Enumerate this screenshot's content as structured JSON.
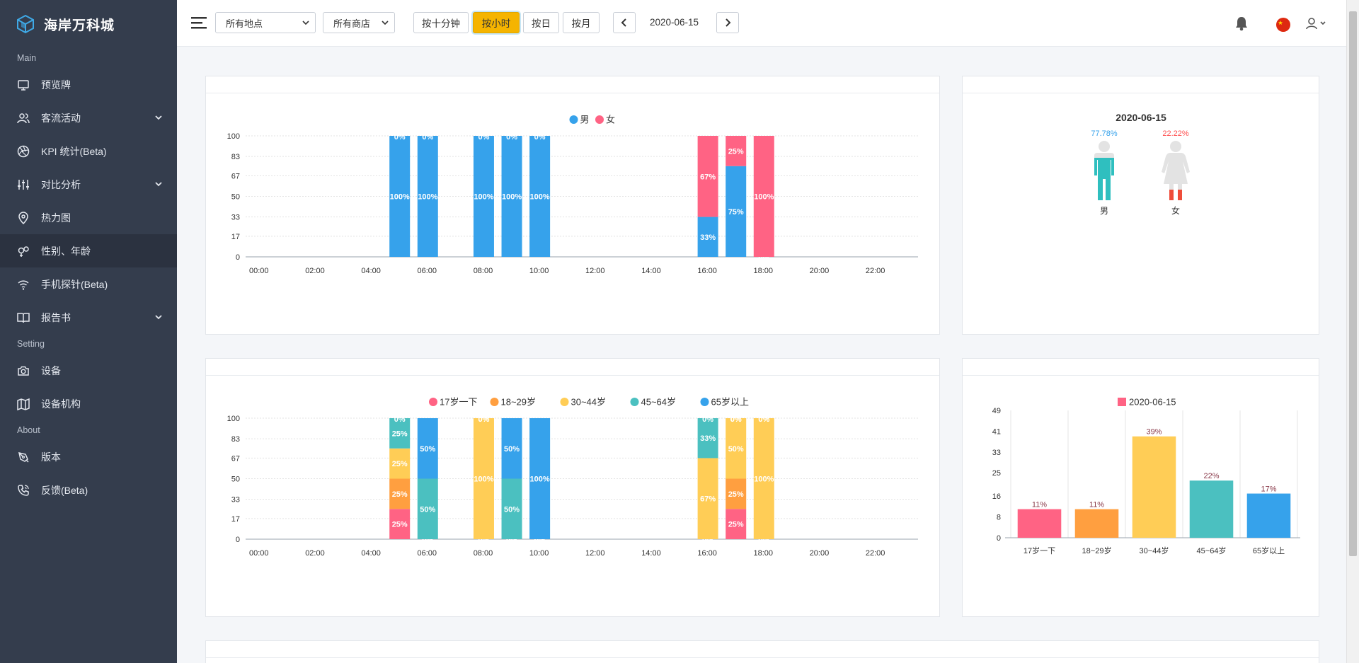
{
  "app": {
    "brand": "海岸万科城"
  },
  "sidebar": {
    "sections": {
      "main": "Main",
      "setting": "Setting",
      "about": "About"
    },
    "items": [
      {
        "label": "预览牌",
        "icon": "monitor-icon"
      },
      {
        "label": "客流活动",
        "icon": "users-icon",
        "expandable": true
      },
      {
        "label": "KPI 统计(Beta)",
        "icon": "aperture-icon"
      },
      {
        "label": "对比分析",
        "icon": "sliders-icon",
        "expandable": true
      },
      {
        "label": "热力图",
        "icon": "map-pin-icon"
      },
      {
        "label": "性别、年龄",
        "icon": "gender-icon",
        "active": true
      },
      {
        "label": "手机探针(Beta)",
        "icon": "wifi-icon"
      },
      {
        "label": "报告书",
        "icon": "book-icon",
        "expandable": true
      },
      {
        "label": "设备",
        "icon": "camera-icon"
      },
      {
        "label": "设备机构",
        "icon": "map-icon"
      },
      {
        "label": "版本",
        "icon": "pen-tool-icon"
      },
      {
        "label": "反馈(Beta)",
        "icon": "phone-icon"
      }
    ]
  },
  "toolbar": {
    "location_select": "所有地点",
    "store_select": "所有商店",
    "granularity": [
      "按十分钟",
      "按小时",
      "按日",
      "按月"
    ],
    "granularity_active": "按小时",
    "date": "2020-06-15"
  },
  "colors": {
    "male": "#36a2eb",
    "female": "#ff6384",
    "age_under17": "#ff6384",
    "age_18_29": "#ff9f40",
    "age_30_44": "#ffcd56",
    "age_45_64": "#4bc0c0",
    "age_65plus": "#36a2eb"
  },
  "gender_summary": {
    "date": "2020-06-15",
    "male_pct": "77.78%",
    "female_pct": "22.22%",
    "male_label": "男",
    "female_label": "女"
  },
  "chart_data": [
    {
      "type": "bar",
      "stacked": true,
      "percent": true,
      "legend": [
        "男",
        "女"
      ],
      "legend_position": "top",
      "ylim": [
        0,
        100
      ],
      "yticks": [
        0,
        17,
        33,
        50,
        67,
        83,
        100
      ],
      "xticks": [
        "00:00",
        "02:00",
        "04:00",
        "06:00",
        "08:00",
        "10:00",
        "12:00",
        "14:00",
        "16:00",
        "18:00",
        "20:00",
        "22:00"
      ],
      "hours": [
        5,
        6,
        8,
        9,
        10,
        16,
        17,
        18
      ],
      "series": [
        {
          "name": "男",
          "values": [
            100,
            100,
            100,
            100,
            100,
            33,
            75,
            0
          ]
        },
        {
          "name": "女",
          "values": [
            0,
            0,
            0,
            0,
            0,
            67,
            25,
            100
          ]
        }
      ]
    },
    {
      "type": "bar",
      "stacked": true,
      "percent": true,
      "legend": [
        "17岁一下",
        "18~29岁",
        "30~44岁",
        "45~64岁",
        "65岁以上"
      ],
      "legend_position": "top",
      "ylim": [
        0,
        100
      ],
      "yticks": [
        0,
        17,
        33,
        50,
        67,
        83,
        100
      ],
      "xticks": [
        "00:00",
        "02:00",
        "04:00",
        "06:00",
        "08:00",
        "10:00",
        "12:00",
        "14:00",
        "16:00",
        "18:00",
        "20:00",
        "22:00"
      ],
      "hours": [
        5,
        6,
        8,
        9,
        10,
        16,
        17,
        18
      ],
      "series": [
        {
          "name": "17岁一下",
          "values": [
            25,
            0,
            0,
            0,
            0,
            0,
            25,
            0
          ]
        },
        {
          "name": "18~29岁",
          "values": [
            25,
            0,
            0,
            0,
            0,
            0,
            25,
            0
          ]
        },
        {
          "name": "30~44岁",
          "values": [
            25,
            0,
            100,
            0,
            0,
            67,
            50,
            100
          ]
        },
        {
          "name": "45~64岁",
          "values": [
            25,
            50,
            0,
            50,
            0,
            33,
            0,
            0
          ]
        },
        {
          "name": "65岁以上",
          "values": [
            0,
            50,
            0,
            50,
            100,
            0,
            0,
            0
          ]
        }
      ]
    },
    {
      "type": "bar",
      "legend": [
        "2020-06-15"
      ],
      "legend_position": "top",
      "ylim": [
        0,
        49
      ],
      "yticks": [
        0,
        8,
        16,
        25,
        33,
        41,
        49
      ],
      "categories": [
        "17岁一下",
        "18~29岁",
        "30~44岁",
        "45~64岁",
        "65岁以上"
      ],
      "values": [
        11,
        11,
        39,
        22,
        17
      ],
      "value_labels": [
        "11%",
        "11%",
        "39%",
        "22%",
        "17%"
      ]
    }
  ]
}
